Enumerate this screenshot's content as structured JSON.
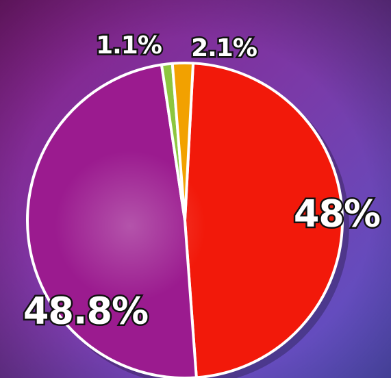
{
  "chart_data": {
    "type": "pie",
    "categories": [
      null,
      null,
      null,
      null
    ],
    "values": [
      48,
      48.8,
      1.1,
      2.1
    ],
    "value_labels": [
      "48%",
      "48.8%",
      "1.1%",
      "2.1%"
    ],
    "colors": [
      "#f2190a",
      "#9b1b8f",
      "#8dc63f",
      "#f2a100"
    ]
  }
}
